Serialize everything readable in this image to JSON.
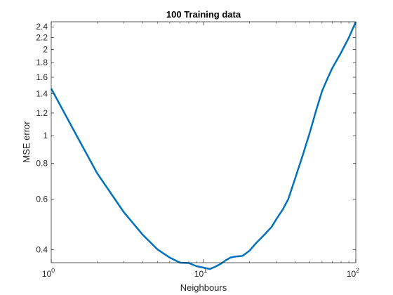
{
  "chart_data": {
    "type": "line",
    "title": "100 Training data",
    "xlabel": "Neighbours",
    "ylabel": "MSE error",
    "x_scale": "log",
    "y_scale": "log",
    "xlim": [
      1,
      100
    ],
    "ylim": [
      0.36,
      2.5
    ],
    "x_ticks": [
      {
        "value": 1,
        "base": "10",
        "exp": "0"
      },
      {
        "value": 10,
        "base": "10",
        "exp": "1"
      },
      {
        "value": 100,
        "base": "10",
        "exp": "2"
      }
    ],
    "y_ticks": [
      {
        "value": 0.4,
        "label": "0.4"
      },
      {
        "value": 0.6,
        "label": "0.6"
      },
      {
        "value": 0.8,
        "label": "0.8"
      },
      {
        "value": 1.0,
        "label": "1"
      },
      {
        "value": 1.2,
        "label": "1.2"
      },
      {
        "value": 1.4,
        "label": "1.4"
      },
      {
        "value": 1.6,
        "label": "1.6"
      },
      {
        "value": 1.8,
        "label": "1.8"
      },
      {
        "value": 2.0,
        "label": "2"
      },
      {
        "value": 2.2,
        "label": "2.2"
      },
      {
        "value": 2.4,
        "label": "2.4"
      }
    ],
    "grid": false,
    "series": [
      {
        "color": "#0072BD",
        "x": [
          1,
          1.5,
          2,
          3,
          4,
          5,
          6,
          7,
          8,
          9,
          10,
          11,
          12,
          13,
          14,
          15,
          16,
          17,
          18,
          20,
          22,
          25,
          28,
          30,
          33,
          36,
          40,
          45,
          50,
          55,
          60,
          65,
          70,
          80,
          90,
          100
        ],
        "y": [
          1.46,
          0.98,
          0.74,
          0.54,
          0.45,
          0.4,
          0.375,
          0.36,
          0.359,
          0.35,
          0.346,
          0.342,
          0.349,
          0.357,
          0.367,
          0.375,
          0.378,
          0.379,
          0.38,
          0.396,
          0.42,
          0.45,
          0.48,
          0.51,
          0.55,
          0.6,
          0.71,
          0.86,
          1.03,
          1.23,
          1.43,
          1.58,
          1.72,
          1.95,
          2.2,
          2.5
        ]
      }
    ]
  }
}
